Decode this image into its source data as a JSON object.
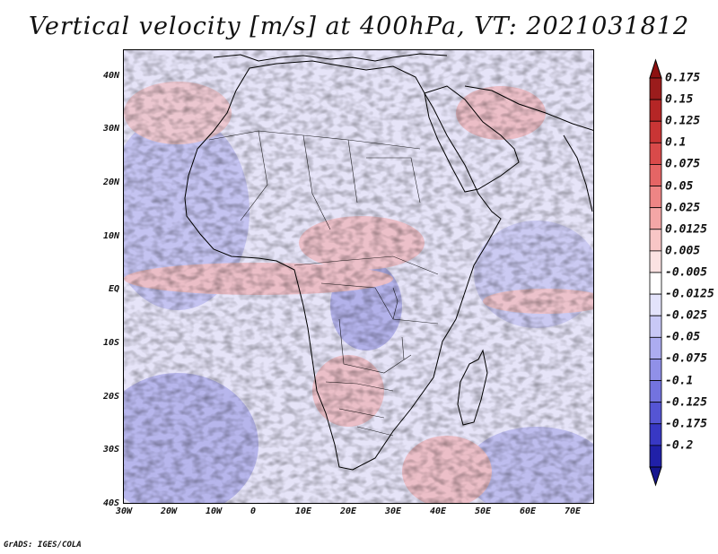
{
  "title": "Vertical velocity [m/s] at 400hPa, VT: 2021031812",
  "map": {
    "region": "Africa and surrounding oceans",
    "lon_range": [
      -30,
      75
    ],
    "lat_range": [
      -40,
      45
    ],
    "lat_ticks": [
      {
        "value": 40,
        "label": "40N"
      },
      {
        "value": 30,
        "label": "30N"
      },
      {
        "value": 20,
        "label": "20N"
      },
      {
        "value": 10,
        "label": "10N"
      },
      {
        "value": 0,
        "label": "EQ"
      },
      {
        "value": -10,
        "label": "10S"
      },
      {
        "value": -20,
        "label": "20S"
      },
      {
        "value": -30,
        "label": "30S"
      },
      {
        "value": -40,
        "label": "40S"
      }
    ],
    "lon_ticks": [
      {
        "value": -30,
        "label": "30W"
      },
      {
        "value": -20,
        "label": "20W"
      },
      {
        "value": -10,
        "label": "10W"
      },
      {
        "value": 0,
        "label": "0"
      },
      {
        "value": 10,
        "label": "10E"
      },
      {
        "value": 20,
        "label": "20E"
      },
      {
        "value": 30,
        "label": "30E"
      },
      {
        "value": 40,
        "label": "40E"
      },
      {
        "value": 50,
        "label": "50E"
      },
      {
        "value": 60,
        "label": "60E"
      },
      {
        "value": 70,
        "label": "70E"
      }
    ]
  },
  "colorbar": {
    "levels": [
      {
        "label": "0.175",
        "color": "#9b1c1c"
      },
      {
        "label": "0.15",
        "color": "#b52626"
      },
      {
        "label": "0.125",
        "color": "#c93535"
      },
      {
        "label": "0.1",
        "color": "#d94a4a"
      },
      {
        "label": "0.075",
        "color": "#e56565"
      },
      {
        "label": "0.05",
        "color": "#ee8585"
      },
      {
        "label": "0.025",
        "color": "#f4a6a6"
      },
      {
        "label": "0.0125",
        "color": "#f8c6c6"
      },
      {
        "label": "0.005",
        "color": "#fbe2e2"
      },
      {
        "label": "-0.005",
        "color": "#ffffff"
      },
      {
        "label": "-0.0125",
        "color": "#e3e3fb"
      },
      {
        "label": "-0.025",
        "color": "#c8c8f6"
      },
      {
        "label": "-0.05",
        "color": "#acacf0"
      },
      {
        "label": "-0.075",
        "color": "#9090e8"
      },
      {
        "label": "-0.1",
        "color": "#7373df"
      },
      {
        "label": "-0.125",
        "color": "#5555d4"
      },
      {
        "label": "-0.175",
        "color": "#3838c4"
      },
      {
        "label": "-0.2",
        "color": "#2020a8"
      }
    ],
    "top_extension_color": "#8e1010",
    "bottom_extension_color": "#16168f"
  },
  "credit": "GrADS: IGES/COLA"
}
